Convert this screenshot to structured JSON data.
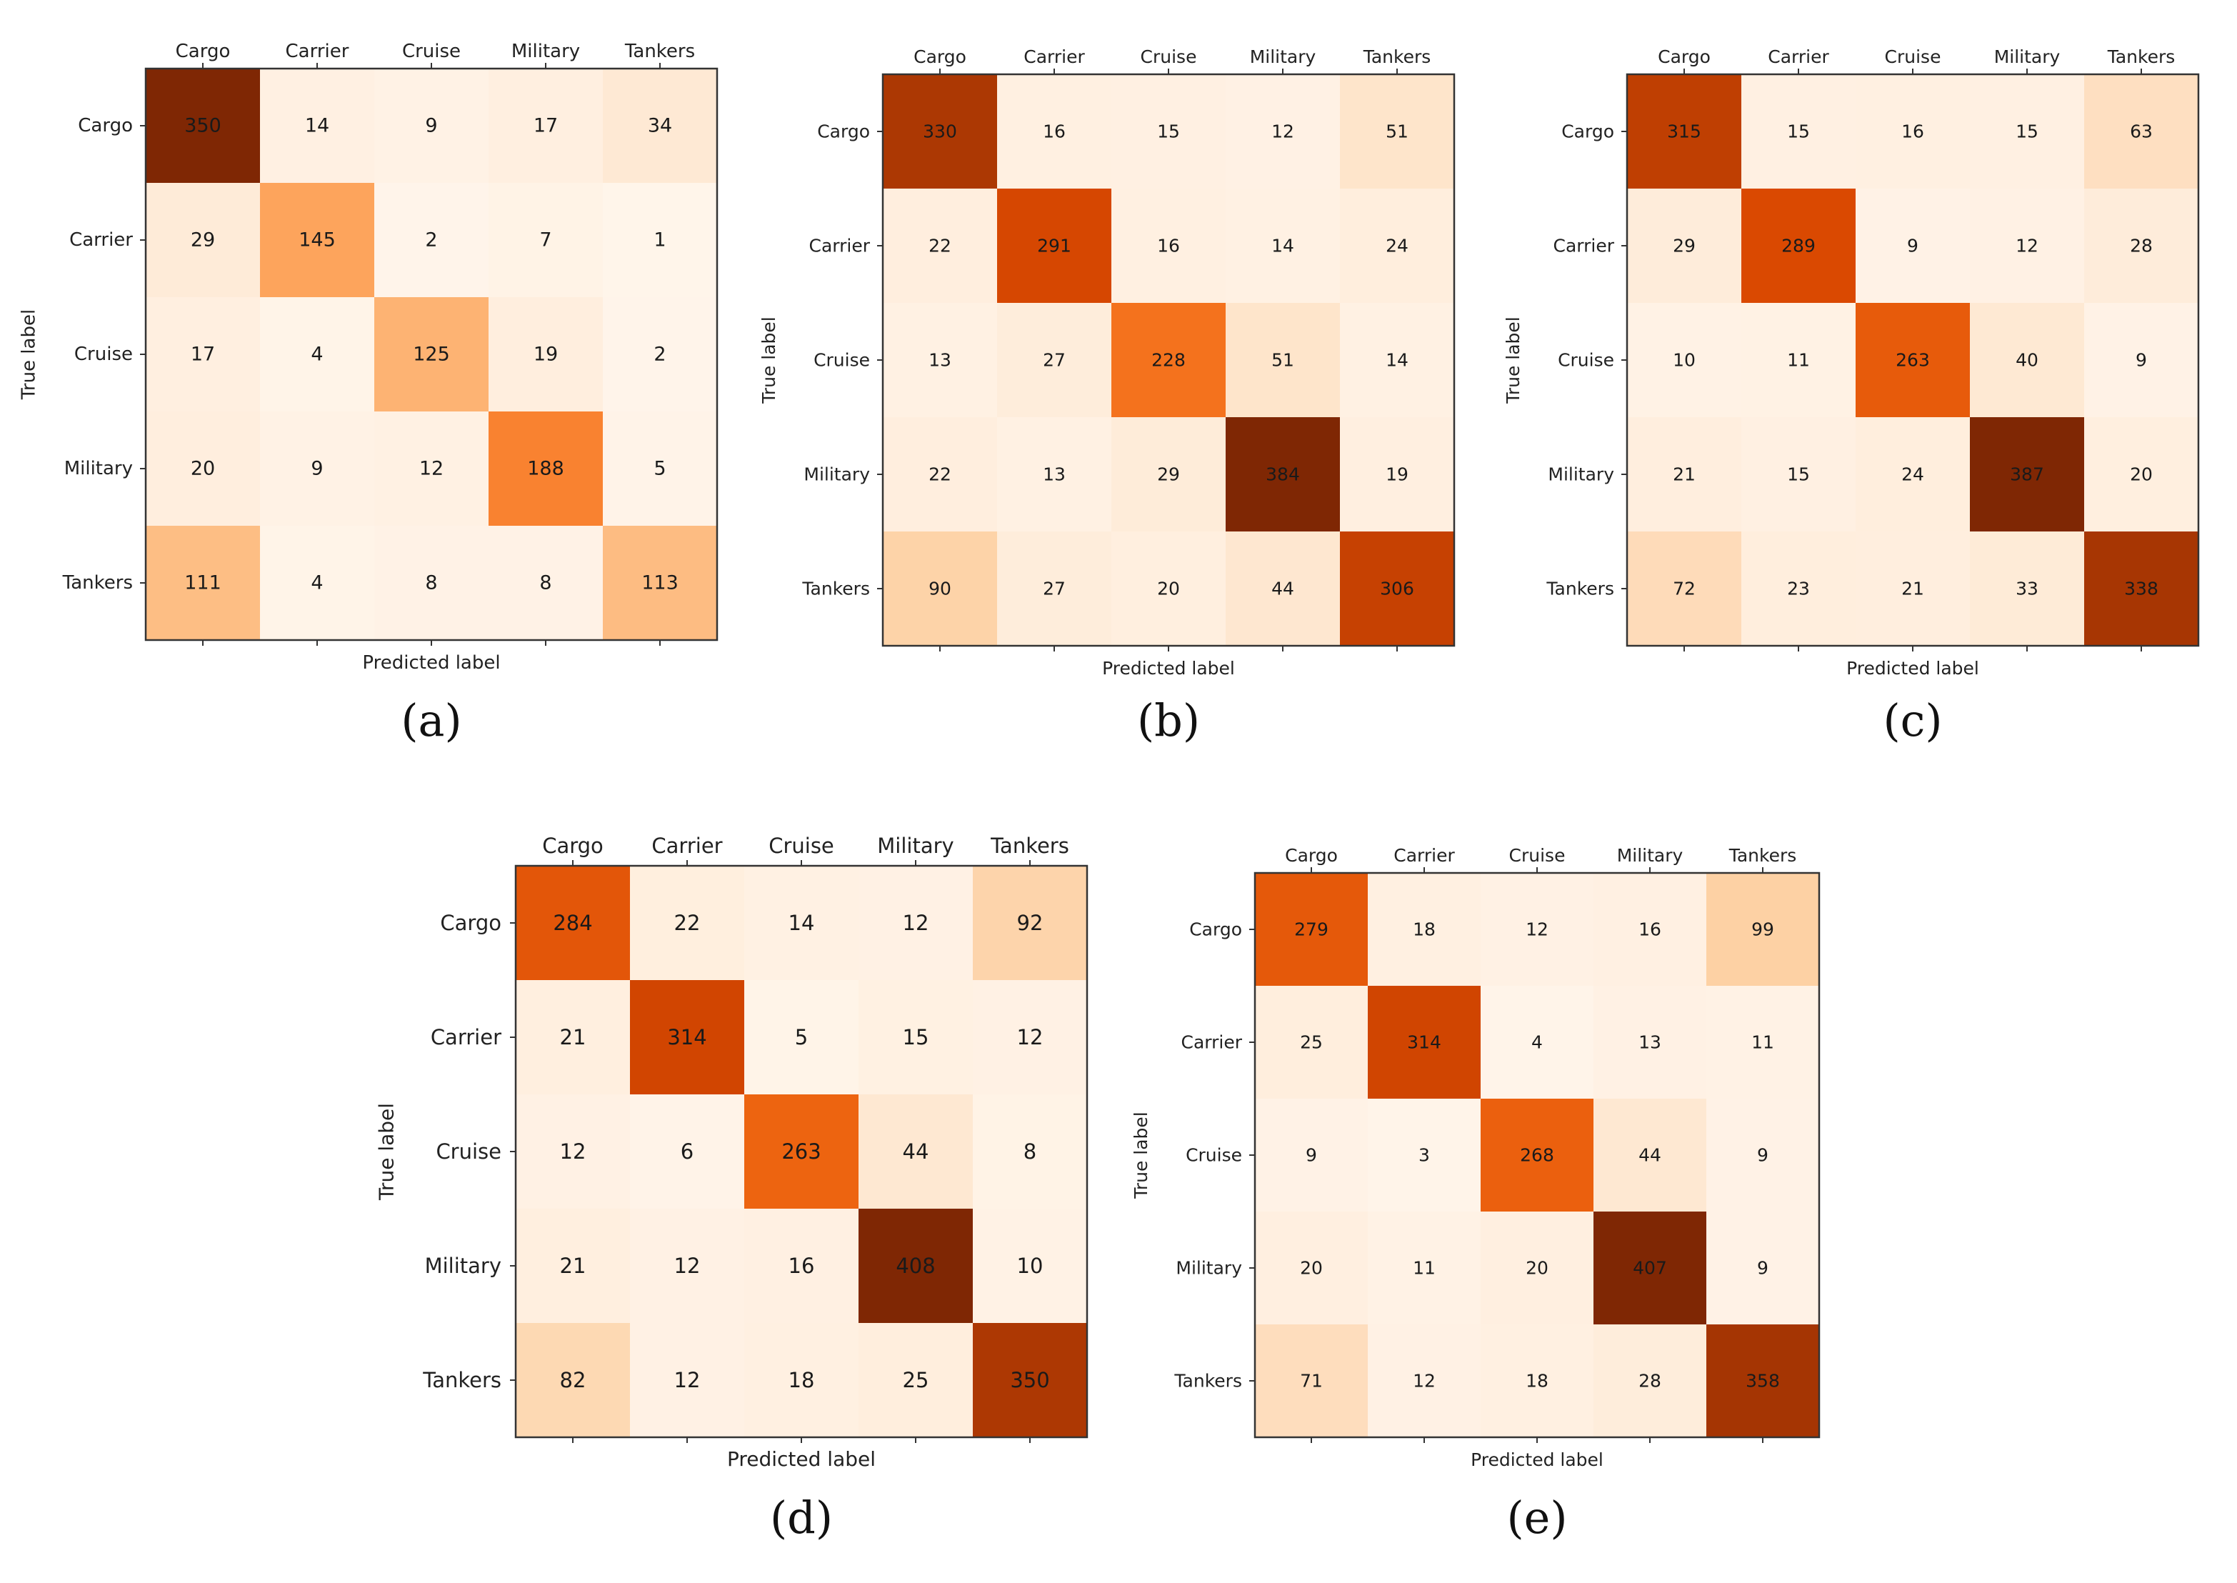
{
  "figure": {
    "colormap": {
      "low": "#fff5eb",
      "stops": [
        "#fff5eb",
        "#fee6ce",
        "#fdd0a2",
        "#fdae6b",
        "#fd8d3c",
        "#f16913",
        "#d94801",
        "#a63603",
        "#7f2704"
      ],
      "text_color": "#1a1a1a",
      "frame_color": "#333333"
    }
  },
  "chart_data": [
    {
      "type": "heatmap",
      "panel_label": "(a)",
      "xlabel": "Predicted label",
      "ylabel": "True label",
      "x_categories": [
        "Cargo",
        "Carrier",
        "Cruise",
        "Military",
        "Tankers"
      ],
      "y_categories": [
        "Cargo",
        "Carrier",
        "Cruise",
        "Military",
        "Tankers"
      ],
      "values": [
        [
          350,
          14,
          9,
          17,
          34
        ],
        [
          29,
          145,
          2,
          7,
          1
        ],
        [
          17,
          4,
          125,
          19,
          2
        ],
        [
          20,
          9,
          12,
          188,
          5
        ],
        [
          111,
          4,
          8,
          8,
          113
        ]
      ]
    },
    {
      "type": "heatmap",
      "panel_label": "(b)",
      "xlabel": "Predicted label",
      "ylabel": "True label",
      "x_categories": [
        "Cargo",
        "Carrier",
        "Cruise",
        "Military",
        "Tankers"
      ],
      "y_categories": [
        "Cargo",
        "Carrier",
        "Cruise",
        "Military",
        "Tankers"
      ],
      "values": [
        [
          330,
          16,
          15,
          12,
          51
        ],
        [
          22,
          291,
          16,
          14,
          24
        ],
        [
          13,
          27,
          228,
          51,
          14
        ],
        [
          22,
          13,
          29,
          384,
          19
        ],
        [
          90,
          27,
          20,
          44,
          306
        ]
      ]
    },
    {
      "type": "heatmap",
      "panel_label": "(c)",
      "xlabel": "Predicted label",
      "ylabel": "True label",
      "x_categories": [
        "Cargo",
        "Carrier",
        "Cruise",
        "Military",
        "Tankers"
      ],
      "y_categories": [
        "Cargo",
        "Carrier",
        "Cruise",
        "Military",
        "Tankers"
      ],
      "values": [
        [
          315,
          15,
          16,
          15,
          63
        ],
        [
          29,
          289,
          9,
          12,
          28
        ],
        [
          10,
          11,
          263,
          40,
          9
        ],
        [
          21,
          15,
          24,
          387,
          20
        ],
        [
          72,
          23,
          21,
          33,
          338
        ]
      ]
    },
    {
      "type": "heatmap",
      "panel_label": "(d)",
      "xlabel": "Predicted label",
      "ylabel": "True label",
      "x_categories": [
        "Cargo",
        "Carrier",
        "Cruise",
        "Military",
        "Tankers"
      ],
      "y_categories": [
        "Cargo",
        "Carrier",
        "Cruise",
        "Military",
        "Tankers"
      ],
      "values": [
        [
          284,
          22,
          14,
          12,
          92
        ],
        [
          21,
          314,
          5,
          15,
          12
        ],
        [
          12,
          6,
          263,
          44,
          8
        ],
        [
          21,
          12,
          16,
          408,
          10
        ],
        [
          82,
          12,
          18,
          25,
          350
        ]
      ]
    },
    {
      "type": "heatmap",
      "panel_label": "(e)",
      "xlabel": "Predicted label",
      "ylabel": "True label",
      "x_categories": [
        "Cargo",
        "Carrier",
        "Cruise",
        "Military",
        "Tankers"
      ],
      "y_categories": [
        "Cargo",
        "Carrier",
        "Cruise",
        "Military",
        "Tankers"
      ],
      "values": [
        [
          279,
          18,
          12,
          16,
          99
        ],
        [
          25,
          314,
          4,
          13,
          11
        ],
        [
          9,
          3,
          268,
          44,
          9
        ],
        [
          20,
          11,
          20,
          407,
          9
        ],
        [
          71,
          12,
          18,
          28,
          358
        ]
      ]
    }
  ]
}
